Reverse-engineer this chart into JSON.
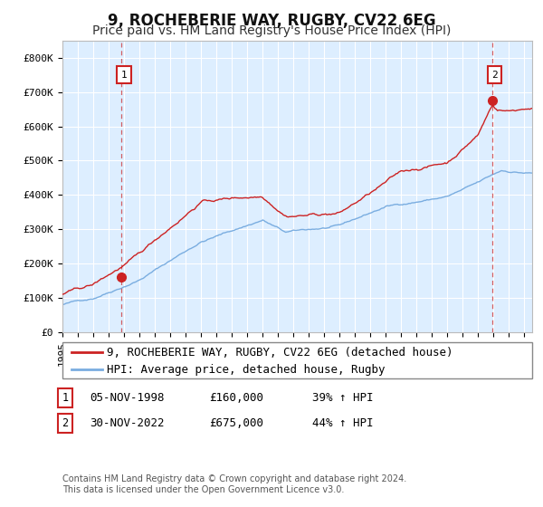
{
  "title": "9, ROCHEBERIE WAY, RUGBY, CV22 6EG",
  "subtitle": "Price paid vs. HM Land Registry's House Price Index (HPI)",
  "ylim": [
    0,
    850000
  ],
  "yticks": [
    0,
    100000,
    200000,
    300000,
    400000,
    500000,
    600000,
    700000,
    800000
  ],
  "ytick_labels": [
    "£0",
    "£100K",
    "£200K",
    "£300K",
    "£400K",
    "£500K",
    "£600K",
    "£700K",
    "£800K"
  ],
  "hpi_color": "#7aade0",
  "property_color": "#cc2222",
  "dashed_line_color": "#cc2222",
  "fig_bg": "#ffffff",
  "plot_bg": "#ddeeff",
  "grid_color": "#ffffff",
  "title_fontsize": 12,
  "subtitle_fontsize": 10,
  "tick_fontsize": 8,
  "legend_label_property": "9, ROCHEBERIE WAY, RUGBY, CV22 6EG (detached house)",
  "legend_label_hpi": "HPI: Average price, detached house, Rugby",
  "annotation1_label": "1",
  "annotation1_date": "05-NOV-1998",
  "annotation1_price": "£160,000",
  "annotation1_hpi": "39% ↑ HPI",
  "annotation2_label": "2",
  "annotation2_date": "30-NOV-2022",
  "annotation2_price": "£675,000",
  "annotation2_hpi": "44% ↑ HPI",
  "footnote": "Contains HM Land Registry data © Crown copyright and database right 2024.\nThis data is licensed under the Open Government Licence v3.0.",
  "sale1_year": 1998.84,
  "sale1_price": 160000,
  "sale2_year": 2022.92,
  "sale2_price": 675000,
  "xstart": 1995.0,
  "xend": 2025.5
}
